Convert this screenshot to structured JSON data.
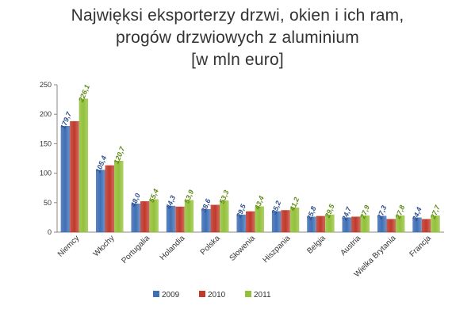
{
  "chart_data": {
    "type": "bar",
    "title": [
      "Najwięksi eksporterzy drzwi, okien i ich ram,",
      "progów drzwiowych z aluminium",
      "[w mln euro]"
    ],
    "categories": [
      "Niemcy",
      "Włochy",
      "Portugalia",
      "Holandia",
      "Polska",
      "Słowenia",
      "Hiszpania",
      "Belgia",
      "Austria",
      "Wielka Brytania",
      "Francja"
    ],
    "series": [
      {
        "name": "2009",
        "color": "#3f6fb5",
        "values": [
          179.7,
          105.4,
          48.0,
          44.3,
          38.6,
          29.5,
          35.2,
          25.8,
          24.7,
          27.3,
          24.4
        ],
        "labels": [
          "179,7",
          "105,4",
          "48,0",
          "44,3",
          "38,6",
          "29,5",
          "35,2",
          "25,8",
          "24,7",
          "27,3",
          "24,4"
        ]
      },
      {
        "name": "2010",
        "color": "#c0392b",
        "values": [
          188,
          113,
          52,
          43,
          46,
          35,
          37,
          27,
          26,
          22,
          22
        ],
        "labels": []
      },
      {
        "name": "2011",
        "color": "#93c13a",
        "values": [
          226.1,
          120.7,
          55.4,
          53.9,
          53.3,
          43.4,
          41.2,
          29.5,
          27.9,
          27.8,
          27.7
        ],
        "labels": [
          "226,1",
          "120,7",
          "55,4",
          "53,9",
          "53,3",
          "43,4",
          "41,2",
          "29,5",
          "27,9",
          "27,8",
          "27,7"
        ]
      }
    ],
    "ylim": [
      0,
      250
    ],
    "yticks": [
      0,
      50,
      100,
      150,
      200,
      250
    ],
    "grid": false,
    "legend": "bottom",
    "xlabel": "",
    "ylabel": ""
  }
}
